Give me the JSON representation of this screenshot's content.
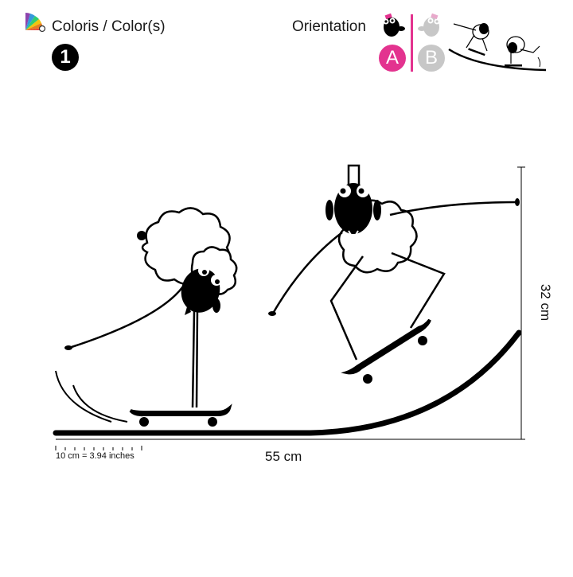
{
  "header": {
    "colors_label": "Coloris / Color(s)",
    "color_count": "1",
    "orientation_label": "Orientation",
    "options": [
      {
        "letter": "A",
        "color": "#e3338f",
        "selected": true
      },
      {
        "letter": "B",
        "color": "#c7c7c7",
        "selected": false
      }
    ],
    "divider_color": "#e3338f",
    "palette_icon": "color-palette-icon",
    "badge_color": "#000000"
  },
  "dimensions": {
    "width": "55 cm",
    "height": "32 cm",
    "scale": "10 cm = 3.94 inches"
  },
  "artwork": {
    "description_icon": "skateboarding-sheep-decal",
    "fill": "#000000"
  }
}
